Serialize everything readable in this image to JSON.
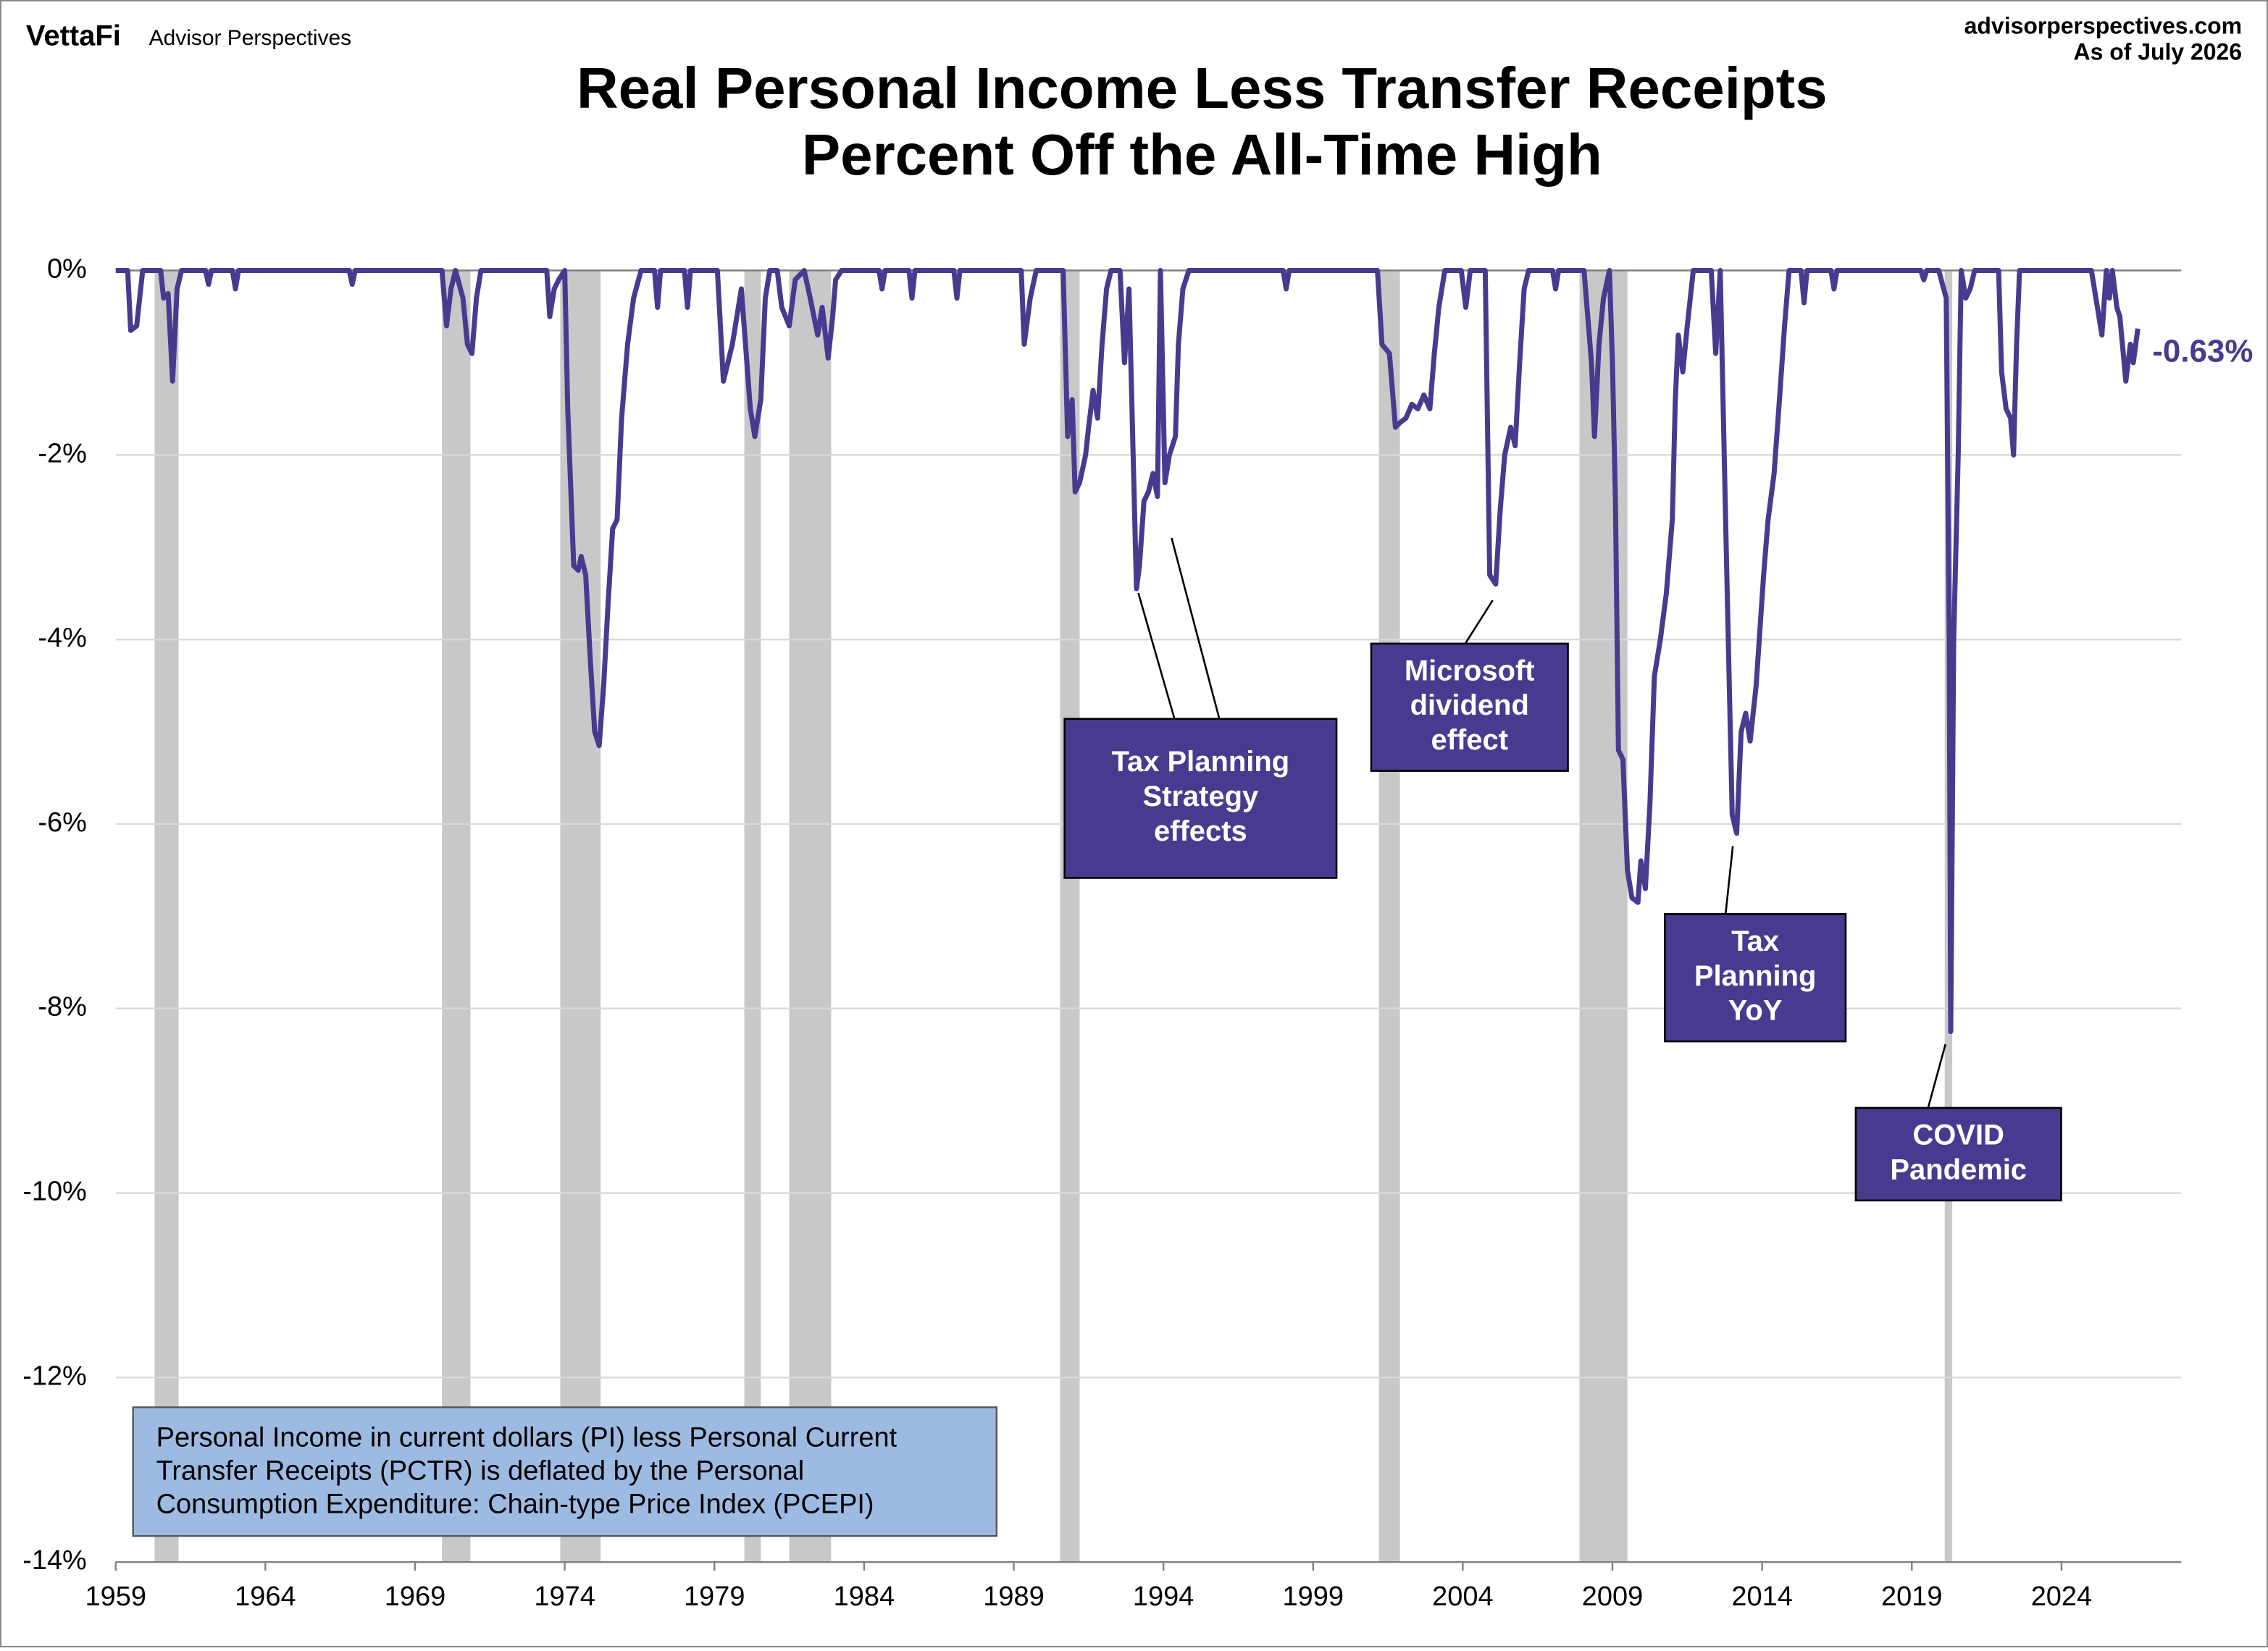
{
  "header": {
    "brand": "VettaFi",
    "publisher": "Advisor Perspectives",
    "site": "advisorperspectives.com",
    "as_of": "As of July 2026"
  },
  "chart_data": {
    "type": "line",
    "title_lines": [
      "Real Personal Income Less Transfer Receipts",
      "Percent Off the All-Time High"
    ],
    "color": "#4a3a8f",
    "recession_color": "#c8c8c8",
    "grid": true,
    "xlim": [
      1959,
      2028
    ],
    "xticks": [
      1959,
      1964,
      1969,
      1974,
      1979,
      1984,
      1989,
      1994,
      1999,
      2004,
      2009,
      2014,
      2019,
      2024
    ],
    "ylim": [
      -14,
      0
    ],
    "yticks": [
      {
        "value": 0,
        "label": "0%"
      },
      {
        "value": -2,
        "label": "-2%"
      },
      {
        "value": -4,
        "label": "-4%"
      },
      {
        "value": -6,
        "label": "-6%"
      },
      {
        "value": -8,
        "label": "-8%"
      },
      {
        "value": -10,
        "label": "-10%"
      },
      {
        "value": -12,
        "label": "-12%"
      },
      {
        "value": -14,
        "label": "-14%"
      }
    ],
    "recessions": [
      [
        1960.3,
        1961.1
      ],
      [
        1969.9,
        1970.85
      ],
      [
        1973.85,
        1975.2
      ],
      [
        1980.0,
        1980.55
      ],
      [
        1981.5,
        1982.9
      ],
      [
        1990.55,
        1991.2
      ],
      [
        2001.2,
        2001.9
      ],
      [
        2007.9,
        2009.5
      ],
      [
        2020.1,
        2020.35
      ]
    ],
    "x": [
      1959.0,
      1959.4,
      1959.5,
      1959.7,
      1959.9,
      1960.5,
      1960.6,
      1960.75,
      1960.9,
      1961.05,
      1961.2,
      1962.0,
      1962.1,
      1962.2,
      1962.9,
      1963.0,
      1963.1,
      1966.8,
      1966.9,
      1967.0,
      1969.9,
      1970.05,
      1970.2,
      1970.35,
      1970.6,
      1970.75,
      1970.9,
      1971.05,
      1971.2,
      1973.4,
      1973.5,
      1973.65,
      1973.8,
      1974.0,
      1974.1,
      1974.3,
      1974.45,
      1974.55,
      1974.7,
      1974.85,
      1975.0,
      1975.15,
      1975.3,
      1975.45,
      1975.6,
      1975.75,
      1975.9,
      1976.1,
      1976.3,
      1976.55,
      1977.0,
      1977.1,
      1977.2,
      1978.0,
      1978.1,
      1978.2,
      1979.1,
      1979.3,
      1979.6,
      1979.9,
      1980.2,
      1980.35,
      1980.55,
      1980.7,
      1980.85,
      1981.1,
      1981.25,
      1981.5,
      1981.7,
      1982.0,
      1982.2,
      1982.45,
      1982.6,
      1982.8,
      1982.95,
      1983.05,
      1983.25,
      1984.5,
      1984.6,
      1984.7,
      1985.5,
      1985.6,
      1985.7,
      1987.0,
      1987.1,
      1987.2,
      1989.25,
      1989.35,
      1989.55,
      1989.75,
      1990.65,
      1990.8,
      1990.95,
      1991.05,
      1991.2,
      1991.4,
      1991.5,
      1991.65,
      1991.8,
      1991.95,
      1992.1,
      1992.25,
      1992.55,
      1992.7,
      1992.85,
      1993.1,
      1993.2,
      1993.35,
      1993.5,
      1993.65,
      1993.8,
      1993.9,
      1994.05,
      1994.2,
      1994.4,
      1994.5,
      1994.65,
      1994.85,
      1998.0,
      1998.1,
      1998.2,
      2001.15,
      2001.3,
      2001.55,
      2001.75,
      2001.9,
      2002.1,
      2002.3,
      2002.5,
      2002.7,
      2002.9,
      2003.05,
      2003.2,
      2003.4,
      2003.95,
      2004.1,
      2004.25,
      2004.75,
      2004.9,
      2005.1,
      2005.25,
      2005.4,
      2005.6,
      2005.75,
      2005.9,
      2006.05,
      2006.2,
      2007.0,
      2007.1,
      2007.2,
      2008.05,
      2008.3,
      2008.4,
      2008.55,
      2008.7,
      2008.9,
      2009.0,
      2009.1,
      2009.2,
      2009.35,
      2009.5,
      2009.65,
      2009.85,
      2009.95,
      2010.1,
      2010.25,
      2010.4,
      2010.6,
      2010.8,
      2011.0,
      2011.1,
      2011.2,
      2011.35,
      2011.5,
      2011.7,
      2012.3,
      2012.45,
      2012.6,
      2012.8,
      2013.0,
      2013.15,
      2013.3,
      2013.45,
      2013.6,
      2013.8,
      2014.05,
      2014.2,
      2014.4,
      2014.6,
      2014.75,
      2014.9,
      2015.3,
      2015.4,
      2015.5,
      2016.3,
      2016.4,
      2016.5,
      2019.3,
      2019.4,
      2019.5,
      2019.9,
      2020.15,
      2020.25,
      2020.3,
      2020.4,
      2020.55,
      2020.65,
      2020.8,
      2020.95,
      2021.1,
      2021.9,
      2022.0,
      2022.15,
      2022.3,
      2022.4,
      2022.5,
      2022.6,
      2025.0,
      2025.2,
      2025.35,
      2025.5,
      2025.6,
      2025.7,
      2025.85,
      2025.95,
      2026.15,
      2026.3,
      2026.4,
      2026.55
    ],
    "values": [
      0,
      0,
      -0.65,
      -0.6,
      0,
      0,
      -0.3,
      -0.25,
      -1.2,
      -0.2,
      0,
      0,
      -0.15,
      0,
      0,
      -0.2,
      0,
      0,
      -0.15,
      0,
      0,
      -0.6,
      -0.2,
      0,
      -0.3,
      -0.8,
      -0.9,
      -0.3,
      0,
      0,
      -0.5,
      -0.2,
      -0.1,
      0,
      -1.5,
      -3.2,
      -3.25,
      -3.1,
      -3.3,
      -4.2,
      -5.0,
      -5.15,
      -4.5,
      -3.6,
      -2.8,
      -2.7,
      -1.6,
      -0.8,
      -0.3,
      0,
      0,
      -0.4,
      0,
      0,
      -0.4,
      0,
      0,
      -1.2,
      -0.8,
      -0.2,
      -1.5,
      -1.8,
      -1.4,
      -0.3,
      0,
      0,
      -0.4,
      -0.6,
      -0.1,
      0,
      -0.3,
      -0.7,
      -0.4,
      -0.95,
      -0.5,
      -0.1,
      0,
      0,
      -0.2,
      0,
      0,
      -0.3,
      0,
      0,
      -0.3,
      0,
      0,
      -0.8,
      -0.3,
      0,
      0,
      -1.8,
      -1.4,
      -2.4,
      -2.3,
      -2.0,
      -1.7,
      -1.3,
      -1.6,
      -0.8,
      -0.2,
      0,
      0,
      -1.0,
      -0.2,
      -3.45,
      -3.2,
      -2.5,
      -2.4,
      -2.2,
      -2.45,
      0,
      -2.3,
      -2.0,
      -1.8,
      -0.8,
      -0.2,
      0,
      0,
      -0.2,
      0,
      0,
      -0.8,
      -0.9,
      -1.7,
      -1.65,
      -1.6,
      -1.45,
      -1.5,
      -1.35,
      -1.5,
      -0.9,
      -0.4,
      0,
      0,
      -0.4,
      0,
      0,
      -3.3,
      -3.4,
      -2.6,
      -2.0,
      -1.7,
      -1.9,
      -1.0,
      -0.2,
      0,
      0,
      -0.2,
      0,
      0,
      -1.0,
      -1.8,
      -0.8,
      -0.3,
      0,
      -1.0,
      -2.5,
      -5.2,
      -5.3,
      -6.5,
      -6.8,
      -6.85,
      -6.4,
      -6.7,
      -5.8,
      -4.4,
      -4.0,
      -3.5,
      -2.7,
      -1.4,
      -0.7,
      -1.1,
      -0.6,
      0,
      0,
      -0.9,
      0,
      -3.0,
      -5.9,
      -6.1,
      -5.0,
      -4.8,
      -5.1,
      -4.5,
      -3.3,
      -2.7,
      -2.2,
      -1.3,
      -0.6,
      0,
      0,
      -0.35,
      0,
      0,
      -0.2,
      0,
      0,
      -0.1,
      0,
      0,
      -0.3,
      -4.0,
      -8.25,
      -4.0,
      -2.0,
      0,
      -0.3,
      -0.2,
      0,
      0,
      -1.1,
      -1.5,
      -1.6,
      -2.0,
      -0.8,
      0,
      0,
      -0.4,
      -0.7,
      0,
      -0.3,
      0,
      -0.4,
      -0.5,
      -1.2,
      -0.8,
      -1.0,
      -0.63
    ],
    "end_label": "-0.63%",
    "annotations": [
      {
        "lines": [
          "Tax Planning",
          "Strategy",
          "effects"
        ]
      },
      {
        "lines": [
          "Microsoft",
          "dividend",
          "effect"
        ]
      },
      {
        "lines": [
          "Tax",
          "Planning",
          "YoY"
        ]
      },
      {
        "lines": [
          "COVID",
          "Pandemic"
        ]
      }
    ],
    "note_lines": [
      "Personal Income in current dollars  (PI) less Personal Current",
      "Transfer Receipts (PCTR) is deflated by the Personal",
      "Consumption Expenditure: Chain-type Price Index (PCEPI)"
    ]
  }
}
